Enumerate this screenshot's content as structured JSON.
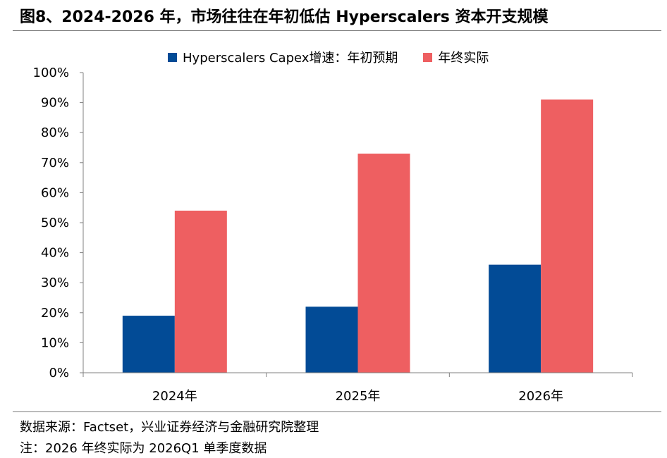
{
  "header": {
    "title": "图8、2024-2026 年，市场往往在年初低估 Hyperscalers 资本开支规模"
  },
  "footer": {
    "source": "数据来源：Factset，兴业证券经济与金融研究院整理",
    "note": "注：2026 年终实际为 2026Q1 单季度数据"
  },
  "chart_data": {
    "type": "bar",
    "categories": [
      "2024年",
      "2025年",
      "2026年"
    ],
    "series": [
      {
        "name": "Hyperscalers Capex增速：年初预期",
        "values": [
          19,
          22,
          36
        ],
        "color": "#024B96"
      },
      {
        "name": "年终实际",
        "values": [
          54,
          73,
          91
        ],
        "color": "#EE5F61"
      }
    ],
    "ylim": [
      0,
      100
    ],
    "yticks": [
      "0%",
      "10%",
      "20%",
      "30%",
      "40%",
      "50%",
      "60%",
      "70%",
      "80%",
      "90%",
      "100%"
    ],
    "grid": false,
    "legend": "top"
  }
}
